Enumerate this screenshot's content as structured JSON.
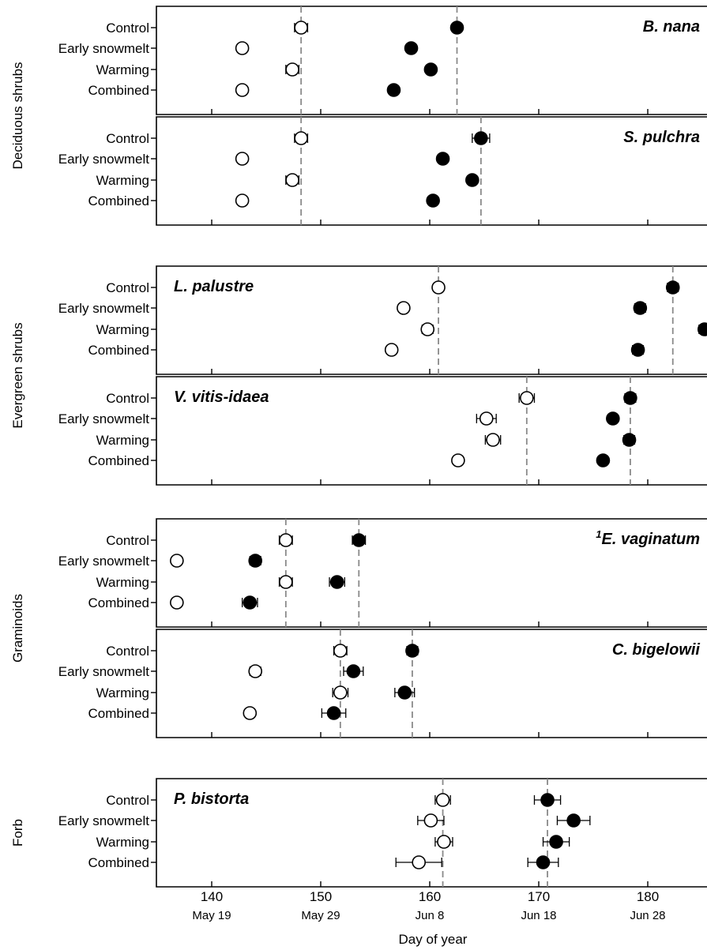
{
  "chart_data": {
    "type": "scatter",
    "x_axis": {
      "title": "Day of year",
      "ticks": [
        140,
        150,
        160,
        170,
        180
      ],
      "date_labels": [
        "May 19",
        "May 29",
        "Jun 8",
        "Jun 18",
        "Jun 28"
      ],
      "range": [
        135,
        186
      ]
    },
    "categories": [
      "Control",
      "Early snowmelt",
      "Warming",
      "Combined"
    ],
    "groups": [
      {
        "label": "Deciduous shrubs",
        "panels": [
          0,
          1
        ]
      },
      {
        "label": "Evergreen shrubs",
        "panels": [
          2,
          3
        ]
      },
      {
        "label": "Graminoids",
        "panels": [
          4,
          5
        ]
      },
      {
        "label": "Forb",
        "panels": [
          6
        ]
      }
    ],
    "panels": [
      {
        "species": "B. nana",
        "superscript": "",
        "label_pos": "right",
        "vlines": [
          148.2,
          162.5
        ],
        "open": [
          {
            "x": 148.2,
            "err": 0.6
          },
          {
            "x": 142.8,
            "err": 0
          },
          {
            "x": 147.4,
            "err": 0.6
          },
          {
            "x": 142.8,
            "err": 0
          }
        ],
        "filled": [
          {
            "x": 162.5,
            "err": 0
          },
          {
            "x": 158.3,
            "err": 0
          },
          {
            "x": 160.1,
            "err": 0
          },
          {
            "x": 156.7,
            "err": 0
          }
        ]
      },
      {
        "species": "S. pulchra",
        "superscript": "",
        "label_pos": "right",
        "vlines": [
          148.2,
          164.7
        ],
        "open": [
          {
            "x": 148.2,
            "err": 0.6
          },
          {
            "x": 142.8,
            "err": 0
          },
          {
            "x": 147.4,
            "err": 0.6
          },
          {
            "x": 142.8,
            "err": 0
          }
        ],
        "filled": [
          {
            "x": 164.7,
            "err": 0.8
          },
          {
            "x": 161.2,
            "err": 0
          },
          {
            "x": 163.9,
            "err": 0
          },
          {
            "x": 160.3,
            "err": 0
          }
        ]
      },
      {
        "species": "L. palustre",
        "superscript": "",
        "label_pos": "left",
        "vlines": [
          160.8,
          182.3
        ],
        "open": [
          {
            "x": 160.8,
            "err": 0
          },
          {
            "x": 157.6,
            "err": 0
          },
          {
            "x": 159.8,
            "err": 0.5
          },
          {
            "x": 156.5,
            "err": 0
          }
        ],
        "filled": [
          {
            "x": 182.3,
            "err": 0.5
          },
          {
            "x": 179.3,
            "err": 0.5
          },
          {
            "x": 185.2,
            "err": 0.5
          },
          {
            "x": 179.1,
            "err": 0.5
          }
        ]
      },
      {
        "species": "V. vitis-idaea",
        "superscript": "",
        "label_pos": "left",
        "vlines": [
          168.9,
          178.4
        ],
        "open": [
          {
            "x": 168.9,
            "err": 0.7
          },
          {
            "x": 165.2,
            "err": 0.9
          },
          {
            "x": 165.8,
            "err": 0.7
          },
          {
            "x": 162.6,
            "err": 0.3
          }
        ],
        "filled": [
          {
            "x": 178.4,
            "err": 0.5
          },
          {
            "x": 176.8,
            "err": 0
          },
          {
            "x": 178.3,
            "err": 0.5
          },
          {
            "x": 175.9,
            "err": 0
          }
        ]
      },
      {
        "species": "E. vaginatum",
        "superscript": "1",
        "label_pos": "right",
        "vlines": [
          146.8,
          153.5
        ],
        "open": [
          {
            "x": 146.8,
            "err": 0.6
          },
          {
            "x": 136.8,
            "err": 0
          },
          {
            "x": 146.8,
            "err": 0.6
          },
          {
            "x": 136.8,
            "err": 0
          }
        ],
        "filled": [
          {
            "x": 153.5,
            "err": 0.6
          },
          {
            "x": 144.0,
            "err": 0.5
          },
          {
            "x": 151.5,
            "err": 0.7
          },
          {
            "x": 143.5,
            "err": 0.7
          }
        ]
      },
      {
        "species": "C. bigelowii",
        "superscript": "",
        "label_pos": "right",
        "vlines": [
          151.8,
          158.4
        ],
        "open": [
          {
            "x": 151.8,
            "err": 0.6
          },
          {
            "x": 144.0,
            "err": 0.5
          },
          {
            "x": 151.8,
            "err": 0.7
          },
          {
            "x": 143.5,
            "err": 0
          }
        ],
        "filled": [
          {
            "x": 158.4,
            "err": 0.5
          },
          {
            "x": 153.0,
            "err": 0.9
          },
          {
            "x": 157.7,
            "err": 0.9
          },
          {
            "x": 151.2,
            "err": 1.1
          }
        ]
      },
      {
        "species": "P. bistorta",
        "superscript": "",
        "label_pos": "left",
        "vlines": [
          161.2,
          170.8
        ],
        "open": [
          {
            "x": 161.2,
            "err": 0.7
          },
          {
            "x": 160.1,
            "err": 1.2
          },
          {
            "x": 161.3,
            "err": 0.8
          },
          {
            "x": 159.0,
            "err": 2.1
          }
        ],
        "filled": [
          {
            "x": 170.8,
            "err": 1.2
          },
          {
            "x": 173.2,
            "err": 1.5
          },
          {
            "x": 171.6,
            "err": 1.2
          },
          {
            "x": 170.4,
            "err": 1.4
          }
        ]
      }
    ]
  }
}
